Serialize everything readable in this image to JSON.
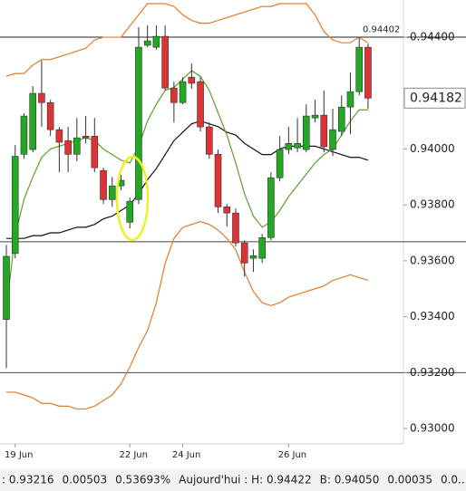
{
  "chart_data": {
    "type": "candlestick",
    "categories": [
      null,
      "19 Jun",
      null,
      null,
      null,
      null,
      null,
      null,
      null,
      null,
      null,
      null,
      null,
      null,
      "22 Jun",
      null,
      null,
      null,
      null,
      null,
      "24 Jun",
      null,
      null,
      null,
      null,
      null,
      null,
      null,
      null,
      null,
      null,
      null,
      "26 Jun",
      null,
      null,
      null,
      null,
      null,
      null,
      null,
      null,
      null
    ],
    "open": [
      0.9339,
      0.93626,
      0.93981,
      0.93998,
      0.94199,
      0.94166,
      0.94069,
      0.9403,
      0.93981,
      0.94046,
      0.94046,
      0.93923,
      0.93819,
      0.93868,
      0.93738,
      0.93819,
      0.94371,
      0.94364,
      0.94403,
      0.94218,
      0.94166,
      0.94257,
      0.94241,
      0.94079,
      0.93981,
      0.93793,
      0.93771,
      0.93664,
      0.93609,
      0.93609,
      0.93683,
      0.93897,
      0.93998,
      0.94004,
      0.93998,
      0.94111,
      0.94121,
      0.93998,
      0.94063,
      0.9415,
      0.94205,
      0.94364
    ],
    "high": [
      0.93657,
      0.94014,
      0.94128,
      0.94225,
      0.94316,
      0.94176,
      0.94079,
      0.94079,
      0.94111,
      0.94118,
      0.94111,
      0.93933,
      0.939,
      0.93907,
      0.93826,
      0.94436,
      0.94442,
      0.94442,
      0.94442,
      0.94241,
      0.94257,
      0.94306,
      0.94257,
      0.94095,
      0.93998,
      0.93803,
      0.93787,
      0.93673,
      0.93641,
      0.93696,
      0.93917,
      0.94046,
      0.94079,
      0.94111,
      0.9416,
      0.94176,
      0.94209,
      0.94144,
      0.94192,
      0.94273,
      0.94402,
      0.94377
    ],
    "low": [
      0.93216,
      0.93609,
      0.93965,
      0.93988,
      0.94079,
      0.94046,
      0.93917,
      0.93917,
      0.93956,
      0.9402,
      0.93917,
      0.93803,
      0.93793,
      0.93852,
      0.93716,
      0.93803,
      0.94364,
      0.94355,
      0.94209,
      0.94095,
      0.9416,
      0.94215,
      0.94063,
      0.93965,
      0.93771,
      0.93722,
      0.93651,
      0.93544,
      0.9356,
      0.93592,
      0.93673,
      0.93884,
      0.93981,
      0.93988,
      0.93988,
      0.94095,
      0.93988,
      0.93975,
      0.94046,
      0.94053,
      0.94192,
      0.94144
    ],
    "close": [
      0.93616,
      0.93974,
      0.94118,
      0.94199,
      0.94166,
      0.94069,
      0.94024,
      0.93981,
      0.9404,
      0.9404,
      0.93933,
      0.93819,
      0.93868,
      0.93888,
      0.93813,
      0.94364,
      0.94387,
      0.94403,
      0.94218,
      0.94166,
      0.94241,
      0.94235,
      0.94079,
      0.93981,
      0.93793,
      0.93771,
      0.93664,
      0.93592,
      0.93618,
      0.93683,
      0.93897,
      0.93998,
      0.9402,
      0.9402,
      0.94118,
      0.94121,
      0.94008,
      0.94069,
      0.9415,
      0.94205,
      0.94364,
      0.94182
    ],
    "up_color": "#22a822",
    "down_color": "#dd3333",
    "overlays": [
      {
        "color": "#e07b2c",
        "values": [
          0.9426,
          0.9427,
          0.9427,
          0.943,
          0.9432,
          0.9432,
          0.9433,
          0.9434,
          0.9435,
          0.9436,
          0.9439,
          0.944,
          0.944,
          0.944,
          0.9444,
          0.9448,
          0.9452,
          0.9452,
          0.9452,
          0.9451,
          0.9448,
          0.9446,
          0.9445,
          0.9445,
          0.9446,
          0.9447,
          0.9448,
          0.9449,
          0.945,
          0.9451,
          0.9451,
          0.9452,
          0.9452,
          0.9452,
          0.9452,
          0.9448,
          0.9442,
          0.9439,
          0.9438,
          0.9438,
          0.944,
          0.9438
        ]
      },
      {
        "color": "#e07b2c",
        "values": [
          0.9313,
          0.9313,
          0.9312,
          0.9311,
          0.9309,
          0.9309,
          0.9308,
          0.9308,
          0.9307,
          0.9307,
          0.9308,
          0.931,
          0.9312,
          0.9316,
          0.9322,
          0.9329,
          0.9335,
          0.9345,
          0.9359,
          0.9368,
          0.9372,
          0.9373,
          0.9374,
          0.9373,
          0.9371,
          0.9368,
          0.9364,
          0.9356,
          0.9349,
          0.9345,
          0.9344,
          0.9345,
          0.9347,
          0.9348,
          0.9349,
          0.935,
          0.9351,
          0.9353,
          0.9354,
          0.9355,
          0.9354,
          0.9353
        ]
      },
      {
        "color": "#111111",
        "values": [
          0.9368,
          0.9368,
          0.9368,
          0.9369,
          0.9369,
          0.937,
          0.937,
          0.9371,
          0.9372,
          0.9372,
          0.9373,
          0.9375,
          0.9376,
          0.9378,
          0.938,
          0.9384,
          0.9389,
          0.9393,
          0.9398,
          0.9403,
          0.9406,
          0.9409,
          0.941,
          0.9409,
          0.9408,
          0.9406,
          0.9405,
          0.9402,
          0.94,
          0.9398,
          0.9398,
          0.94,
          0.9401,
          0.9401,
          0.9401,
          0.9401,
          0.94,
          0.9399,
          0.9398,
          0.9397,
          0.9397,
          0.9396
        ]
      },
      {
        "color": "#5aa02c",
        "values": [
          0.9343,
          0.9369,
          0.9382,
          0.939,
          0.9397,
          0.94,
          0.9401,
          0.9402,
          0.9403,
          0.9404,
          0.9403,
          0.94,
          0.9398,
          0.9396,
          0.9395,
          0.9401,
          0.941,
          0.9416,
          0.9421,
          0.9422,
          0.9425,
          0.9428,
          0.9426,
          0.9421,
          0.9413,
          0.9405,
          0.9395,
          0.9384,
          0.9376,
          0.9372,
          0.9374,
          0.9378,
          0.9383,
          0.9387,
          0.9391,
          0.9395,
          0.9398,
          0.94,
          0.9405,
          0.941,
          0.9414,
          0.9414
        ]
      }
    ],
    "ylim": [
      0.92945,
      0.94533
    ],
    "yticks": [
      {
        "value": 0.944,
        "label": "0.94400"
      },
      {
        "value": 0.942,
        "label": "0.94200"
      },
      {
        "value": 0.94,
        "label": "0.94000"
      },
      {
        "value": 0.938,
        "label": "0.93800"
      },
      {
        "value": 0.936,
        "label": "0.93600"
      },
      {
        "value": 0.934,
        "label": "0.93400"
      },
      {
        "value": 0.932,
        "label": "0.93200"
      },
      {
        "value": 0.93,
        "label": "0.93000"
      }
    ],
    "levels": [
      0.944,
      0.93668,
      0.932
    ],
    "high_label": {
      "value": 0.94402,
      "label": "0.94402"
    },
    "last_price": {
      "value": 0.94182,
      "label": "0.94182"
    },
    "status": [
      ": 0.93216",
      "0.00503",
      "0.53693%",
      "Aujourd'hui : H: 0.94422",
      "B: 0.94050",
      "0.00035",
      "0.0..."
    ],
    "status_colors": [
      "#222222",
      "#1a9a1a",
      "#1a9a1a",
      "#555555",
      "#555555",
      "#1a9a1a",
      "#1a9a1a"
    ]
  }
}
